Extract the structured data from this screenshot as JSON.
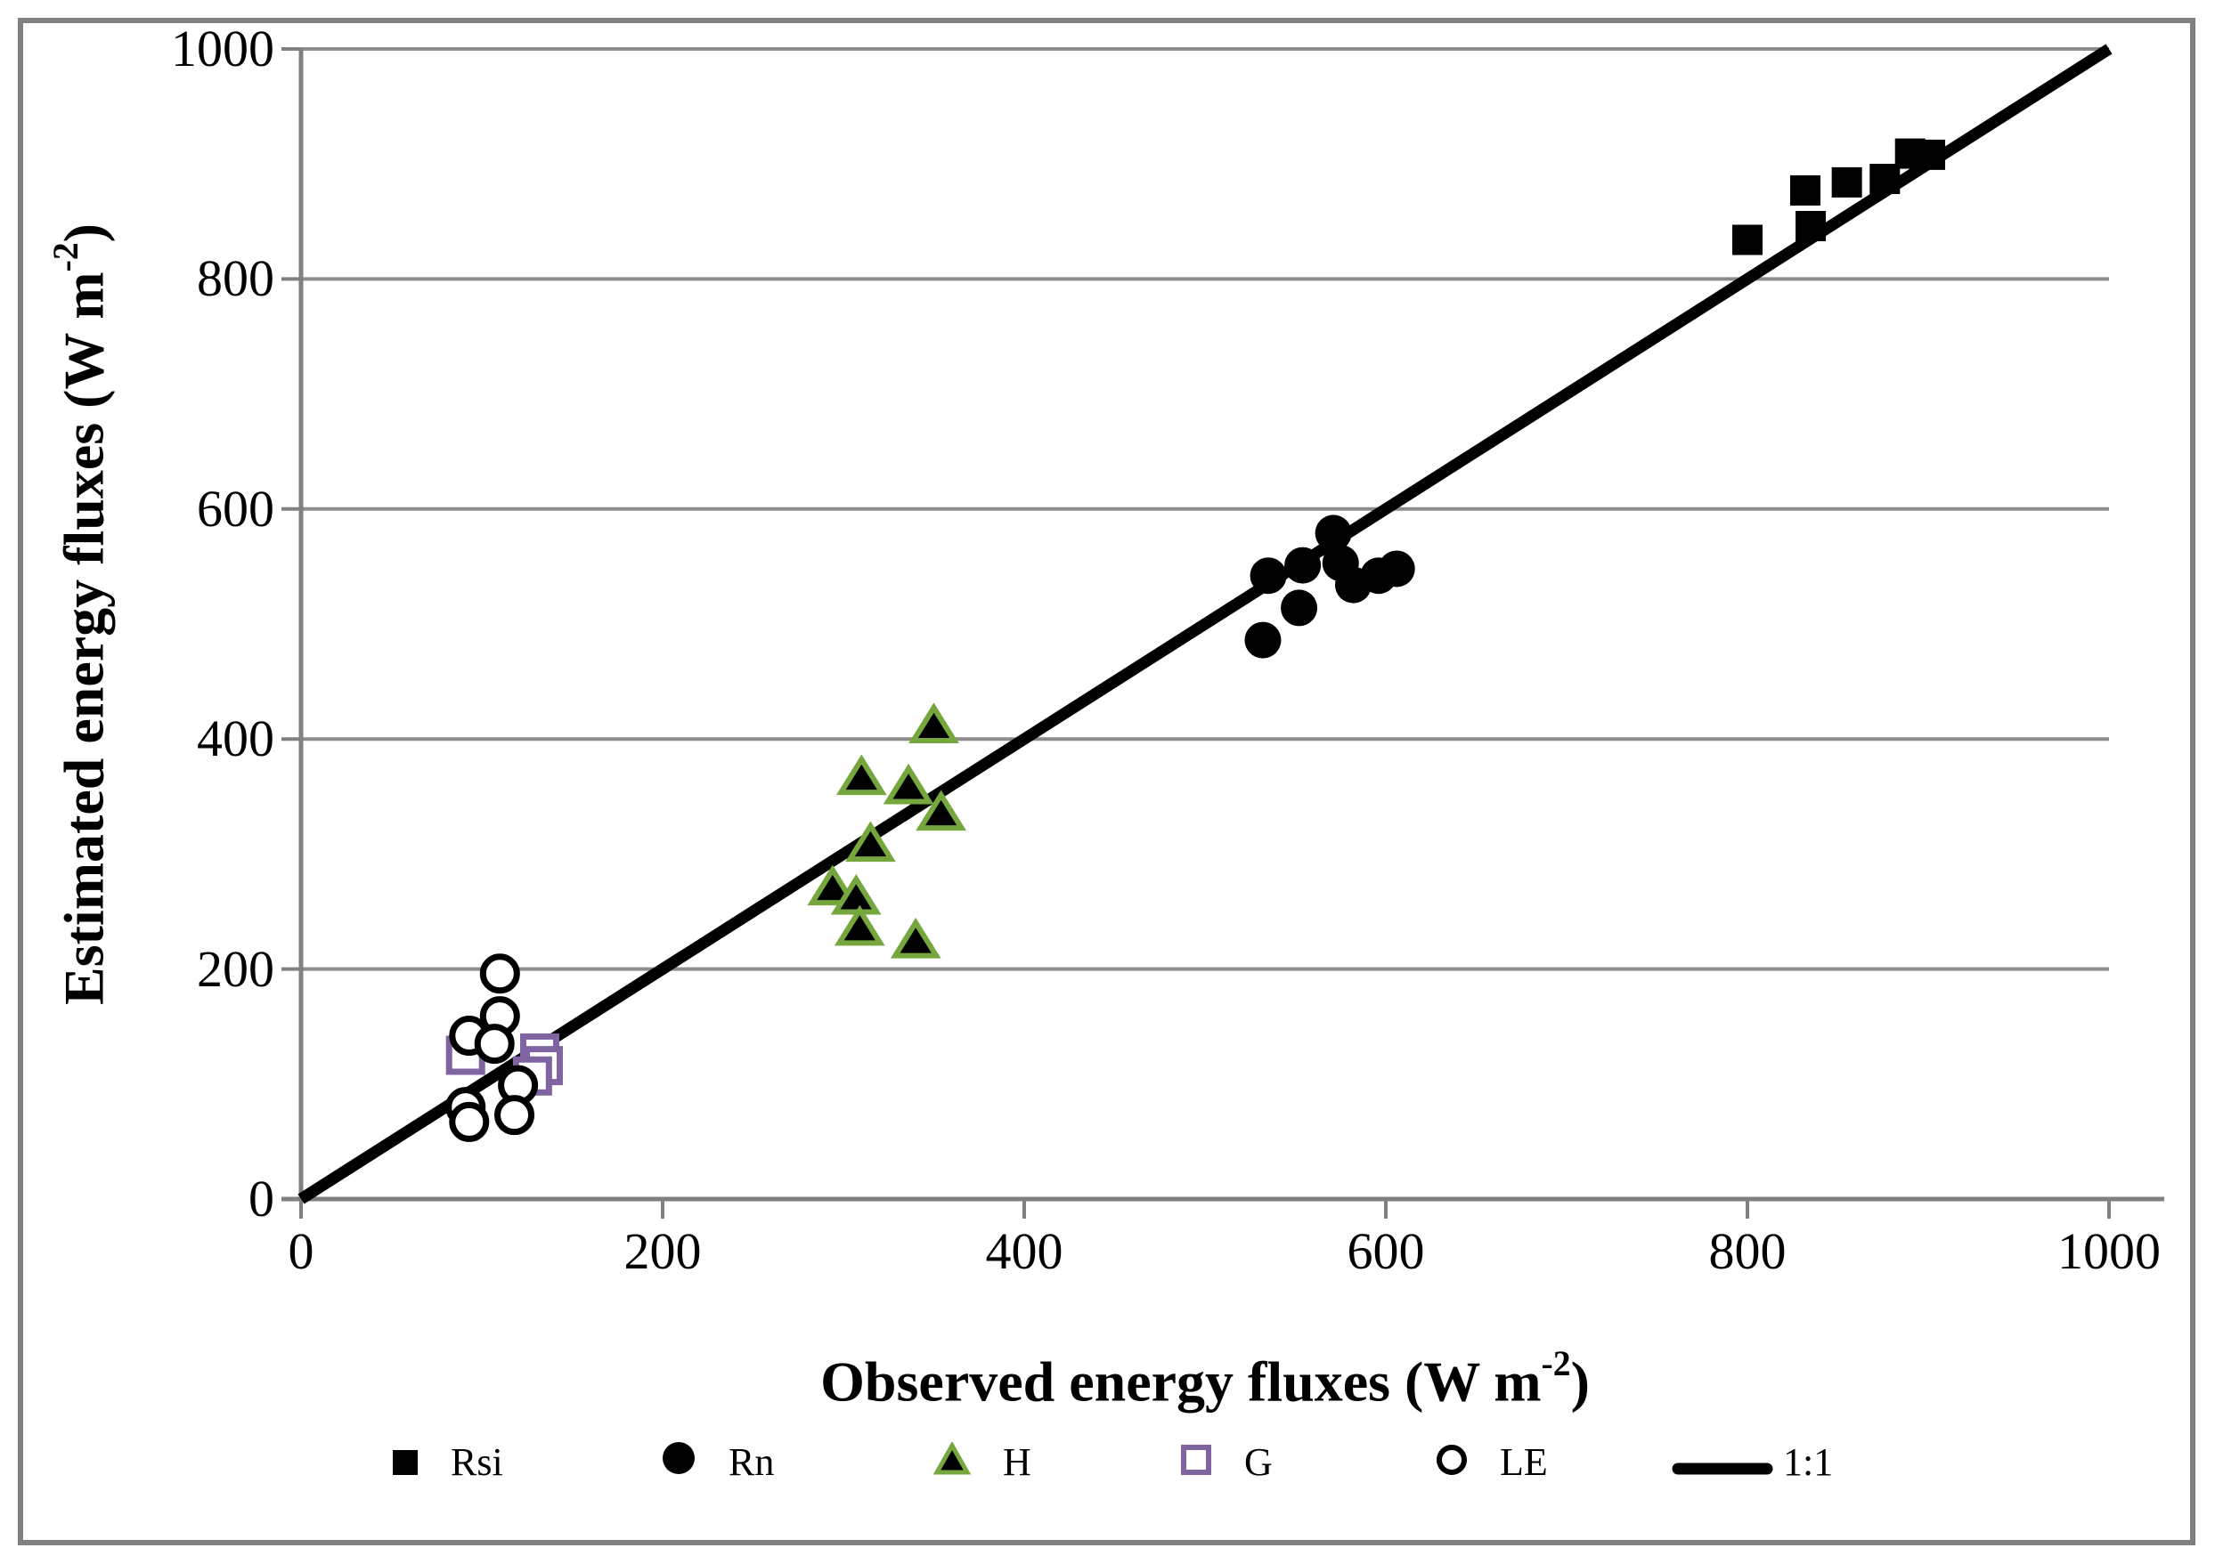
{
  "figure": {
    "background": "#ffffff",
    "border_color": "#808080"
  },
  "colors": {
    "black": "#000000",
    "triangle_edge_green": "#76A73F",
    "square_edge_purple": "#8064A2",
    "gridline_gray": "#8C8C8C",
    "axis_gray": "#808080"
  },
  "chart_data": {
    "type": "scatter",
    "title": "",
    "grid": "horizontal-only",
    "legend_position": "bottom",
    "x_axis": {
      "title_pre": "Observed energy fluxes (W m",
      "title_sup": "-2",
      "title_post": ")",
      "range": [
        0,
        1000
      ],
      "ticks": [
        0,
        200,
        400,
        600,
        800,
        1000
      ]
    },
    "y_axis": {
      "title_pre": "Estimated energy fluxes  (W m",
      "title_sup": "-2",
      "title_post": ")",
      "range": [
        0,
        1000
      ],
      "ticks": [
        0,
        200,
        400,
        600,
        800,
        1000
      ]
    },
    "series": [
      {
        "name": "Rsi",
        "marker": "filled-square",
        "fill": "#000000",
        "edge": "#000000",
        "points": [
          [
            800,
            834
          ],
          [
            832,
            877
          ],
          [
            835,
            846
          ],
          [
            855,
            884
          ],
          [
            876,
            887
          ],
          [
            890,
            909
          ],
          [
            901,
            908
          ]
        ]
      },
      {
        "name": "Rn",
        "marker": "filled-circle",
        "fill": "#000000",
        "edge": "#000000",
        "points": [
          [
            535,
            542
          ],
          [
            554,
            551
          ],
          [
            571,
            579
          ],
          [
            575,
            553
          ],
          [
            582,
            534
          ],
          [
            596,
            542
          ],
          [
            606,
            548
          ],
          [
            552,
            514
          ],
          [
            532,
            486
          ]
        ]
      },
      {
        "name": "H",
        "marker": "filled-triangle",
        "fill": "#000000",
        "edge": "#76A73F",
        "points": [
          [
            350,
            411
          ],
          [
            310,
            366
          ],
          [
            336,
            358
          ],
          [
            354,
            335
          ],
          [
            315,
            308
          ],
          [
            294,
            270
          ],
          [
            307,
            262
          ],
          [
            309,
            235
          ],
          [
            340,
            224
          ]
        ]
      },
      {
        "name": "G",
        "marker": "open-square",
        "fill": "#ffffff",
        "edge": "#8064A2",
        "points": [
          [
            91,
            125
          ],
          [
            132,
            127
          ],
          [
            134,
            116
          ],
          [
            128,
            107
          ]
        ]
      },
      {
        "name": "LE",
        "marker": "open-circle",
        "fill": "#ffffff",
        "edge": "#000000",
        "points": [
          [
            110,
            196
          ],
          [
            110,
            159
          ],
          [
            93,
            142
          ],
          [
            107,
            135
          ],
          [
            120,
            99
          ],
          [
            91,
            80
          ],
          [
            93,
            67
          ],
          [
            118,
            73
          ]
        ]
      },
      {
        "name": "1:1",
        "marker": "line",
        "fill": "#000000",
        "edge": "#000000",
        "points": [
          [
            0,
            0
          ],
          [
            1000,
            1000
          ]
        ]
      }
    ]
  },
  "legend": {
    "items": [
      {
        "label": "Rsi"
      },
      {
        "label": "Rn"
      },
      {
        "label": "H"
      },
      {
        "label": "G"
      },
      {
        "label": "LE"
      },
      {
        "label": "1:1"
      }
    ]
  }
}
